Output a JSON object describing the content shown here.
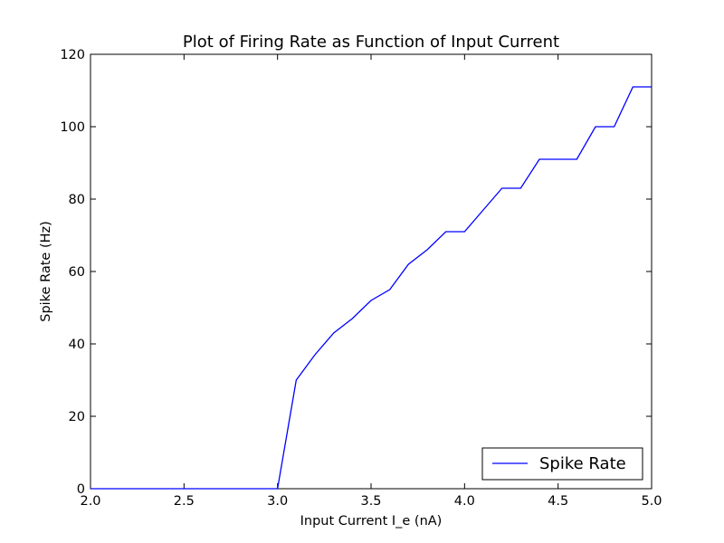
{
  "chart_data": {
    "type": "line",
    "title": "Plot of Firing Rate as Function of Input Current",
    "xlabel": "Input Current I_e (nA)",
    "ylabel": "Spike Rate (Hz)",
    "xlim": [
      2.0,
      5.0
    ],
    "ylim": [
      0,
      120
    ],
    "xticks": [
      2.0,
      2.5,
      3.0,
      3.5,
      4.0,
      4.5,
      5.0
    ],
    "xtick_labels": [
      "2.0",
      "2.5",
      "3.0",
      "3.5",
      "4.0",
      "4.5",
      "5.0"
    ],
    "yticks": [
      0,
      20,
      40,
      60,
      80,
      100,
      120
    ],
    "ytick_labels": [
      "0",
      "20",
      "40",
      "60",
      "80",
      "100",
      "120"
    ],
    "grid": false,
    "legend_position": "bottom-right",
    "series": [
      {
        "name": "Spike Rate",
        "color": "#0000ff",
        "x": [
          2.0,
          2.1,
          2.2,
          2.3,
          2.4,
          2.5,
          2.6,
          2.7,
          2.8,
          2.9,
          3.0,
          3.1,
          3.2,
          3.3,
          3.4,
          3.5,
          3.6,
          3.7,
          3.8,
          3.9,
          4.0,
          4.1,
          4.2,
          4.3,
          4.4,
          4.5,
          4.6,
          4.7,
          4.8,
          4.9,
          5.0
        ],
        "y": [
          0,
          0,
          0,
          0,
          0,
          0,
          0,
          0,
          0,
          0,
          0,
          30,
          37,
          43,
          47,
          52,
          55,
          62,
          66,
          71,
          71,
          77,
          83,
          83,
          91,
          91,
          91,
          100,
          100,
          111,
          111
        ]
      }
    ]
  }
}
